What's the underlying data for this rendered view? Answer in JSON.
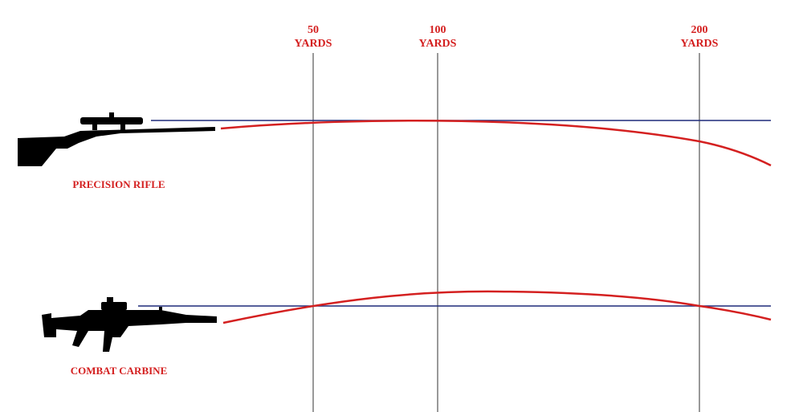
{
  "markers": [
    {
      "distance": "50",
      "unit": "YARDS"
    },
    {
      "distance": "100",
      "unit": "YARDS"
    },
    {
      "distance": "200",
      "unit": "YARDS"
    }
  ],
  "weapons": [
    {
      "label": "PRECISION RIFLE"
    },
    {
      "label": "COMBAT CARBINE"
    }
  ]
}
